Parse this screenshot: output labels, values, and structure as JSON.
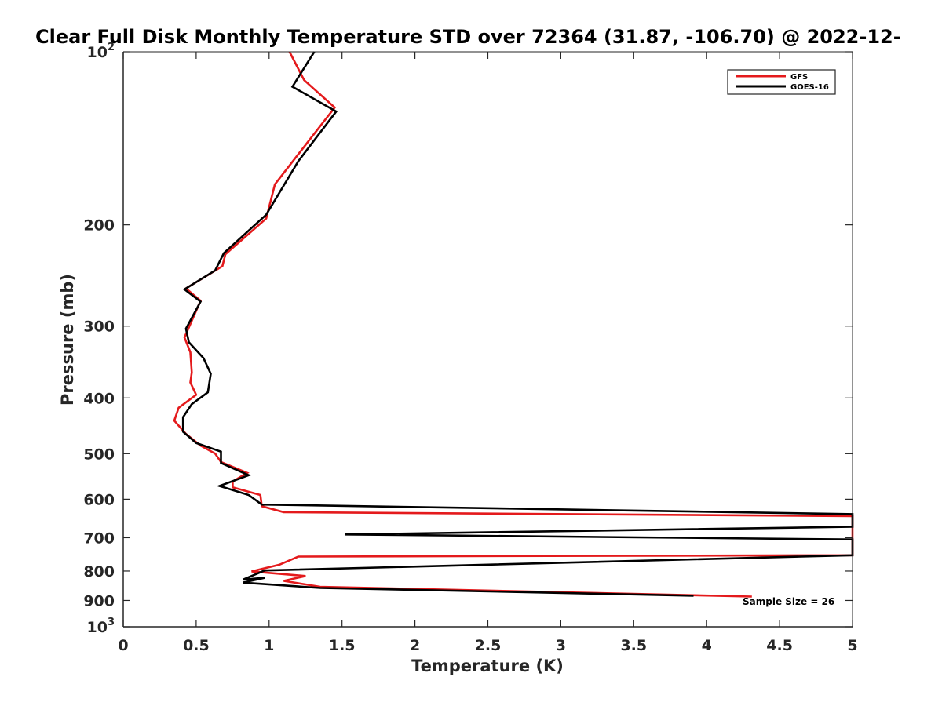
{
  "chart_data": {
    "type": "line",
    "title": "Clear Full Disk Monthly Temperature STD over 72364 (31.87, -106.70) @ 2022-12-",
    "xlabel": "Temperature (K)",
    "ylabel": "Pressure (mb)",
    "xlim": [
      0,
      5
    ],
    "ylim": [
      100,
      1000
    ],
    "yscale": "log",
    "y_reversed": true,
    "grid": false,
    "x_ticks": [
      {
        "value": 0,
        "label": "0"
      },
      {
        "value": 0.5,
        "label": "0.5"
      },
      {
        "value": 1,
        "label": "1"
      },
      {
        "value": 1.5,
        "label": "1.5"
      },
      {
        "value": 2,
        "label": "2"
      },
      {
        "value": 2.5,
        "label": "2.5"
      },
      {
        "value": 3,
        "label": "3"
      },
      {
        "value": 3.5,
        "label": "3.5"
      },
      {
        "value": 4,
        "label": "4"
      },
      {
        "value": 4.5,
        "label": "4.5"
      },
      {
        "value": 5,
        "label": "5"
      }
    ],
    "y_ticks": [
      {
        "value": 100,
        "label": "10",
        "exp": "2"
      },
      {
        "value": 200,
        "label": "200"
      },
      {
        "value": 300,
        "label": "300"
      },
      {
        "value": 400,
        "label": "400"
      },
      {
        "value": 500,
        "label": "500"
      },
      {
        "value": 600,
        "label": "600"
      },
      {
        "value": 700,
        "label": "700"
      },
      {
        "value": 800,
        "label": "800"
      },
      {
        "value": 900,
        "label": "900"
      },
      {
        "value": 1000,
        "label": "10",
        "exp": "3"
      }
    ],
    "legend_position": "top-right",
    "annotation": "Sample Size = 26",
    "series": [
      {
        "name": "GFS",
        "color": "#e41a1c",
        "points": [
          [
            1.14,
            100
          ],
          [
            1.24,
            112
          ],
          [
            1.45,
            125
          ],
          [
            1.28,
            142
          ],
          [
            1.04,
            170
          ],
          [
            0.98,
            195
          ],
          [
            0.7,
            225
          ],
          [
            0.68,
            236
          ],
          [
            0.43,
            258
          ],
          [
            0.53,
            271
          ],
          [
            0.42,
            314
          ],
          [
            0.46,
            333
          ],
          [
            0.47,
            361
          ],
          [
            0.46,
            376
          ],
          [
            0.5,
            395
          ],
          [
            0.38,
            416
          ],
          [
            0.35,
            438
          ],
          [
            0.43,
            462
          ],
          [
            0.53,
            484
          ],
          [
            0.63,
            500
          ],
          [
            0.67,
            517
          ],
          [
            0.85,
            540
          ],
          [
            0.75,
            559
          ],
          [
            0.75,
            572
          ],
          [
            0.94,
            590
          ],
          [
            0.95,
            617
          ],
          [
            1.1,
            632
          ],
          [
            5.0,
            642
          ],
          [
            5.0,
            751
          ],
          [
            1.2,
            755
          ],
          [
            1.07,
            780
          ],
          [
            0.88,
            801
          ],
          [
            1.25,
            816
          ],
          [
            1.1,
            832
          ],
          [
            1.35,
            852
          ],
          [
            4.31,
            886
          ]
        ]
      },
      {
        "name": "GOES-16",
        "color": "#000000",
        "points": [
          [
            1.31,
            100
          ],
          [
            1.16,
            115
          ],
          [
            1.46,
            127
          ],
          [
            1.2,
            155
          ],
          [
            0.98,
            192
          ],
          [
            0.69,
            224
          ],
          [
            0.63,
            240
          ],
          [
            0.42,
            259
          ],
          [
            0.53,
            272
          ],
          [
            0.43,
            303
          ],
          [
            0.45,
            320
          ],
          [
            0.55,
            341
          ],
          [
            0.6,
            363
          ],
          [
            0.58,
            391
          ],
          [
            0.47,
            410
          ],
          [
            0.41,
            432
          ],
          [
            0.41,
            458
          ],
          [
            0.5,
            479
          ],
          [
            0.67,
            496
          ],
          [
            0.67,
            519
          ],
          [
            0.86,
            545
          ],
          [
            0.66,
            569
          ],
          [
            0.86,
            590
          ],
          [
            0.95,
            613
          ],
          [
            5.0,
            637
          ],
          [
            5.0,
            670
          ],
          [
            1.52,
            691
          ],
          [
            5.0,
            705
          ],
          [
            5.0,
            751
          ],
          [
            0.97,
            798
          ],
          [
            0.82,
            828
          ],
          [
            0.97,
            822
          ],
          [
            0.82,
            838
          ],
          [
            1.35,
            856
          ],
          [
            3.91,
            883
          ]
        ]
      }
    ]
  }
}
